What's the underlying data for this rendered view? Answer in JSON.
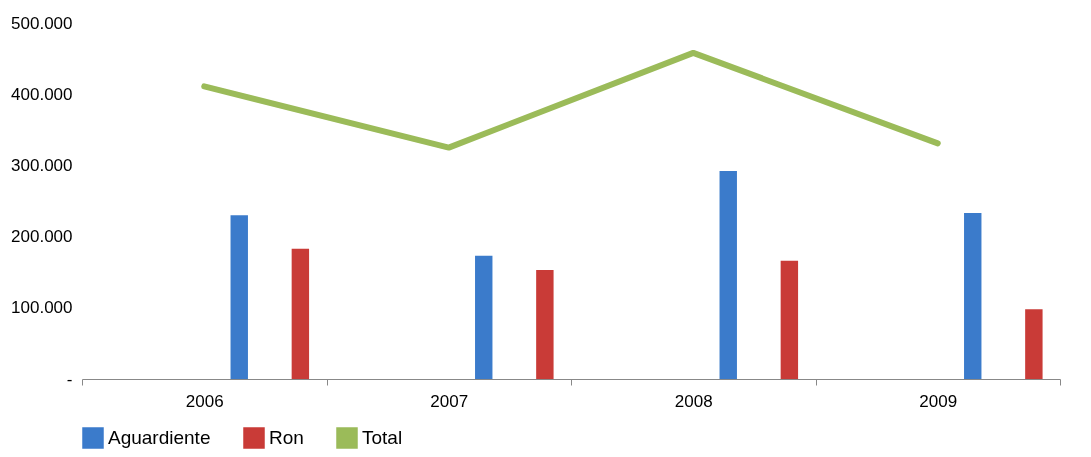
{
  "chart_data": {
    "type": "bar",
    "categories": [
      "2006",
      "2007",
      "2008",
      "2009"
    ],
    "series": [
      {
        "name": "Aguardiente",
        "color": "#3b7bcb",
        "values": [
          230000,
          173000,
          292000,
          233000
        ]
      },
      {
        "name": "Ron",
        "color": "#c93b37",
        "values": [
          183000,
          153000,
          166000,
          98000
        ]
      },
      {
        "name": "Total",
        "color": "#9bbb59",
        "type": "line",
        "values": [
          411000,
          325000,
          458000,
          331000
        ]
      }
    ],
    "ylim": [
      0,
      500000
    ],
    "yticks": [
      {
        "value": 0,
        "label": "-"
      },
      {
        "value": 100000,
        "label": "100.000"
      },
      {
        "value": 200000,
        "label": "200.000"
      },
      {
        "value": 300000,
        "label": "300.000"
      },
      {
        "value": 400000,
        "label": "400.000"
      },
      {
        "value": 500000,
        "label": "500.000"
      }
    ],
    "grid": false,
    "legend": "bottom"
  }
}
